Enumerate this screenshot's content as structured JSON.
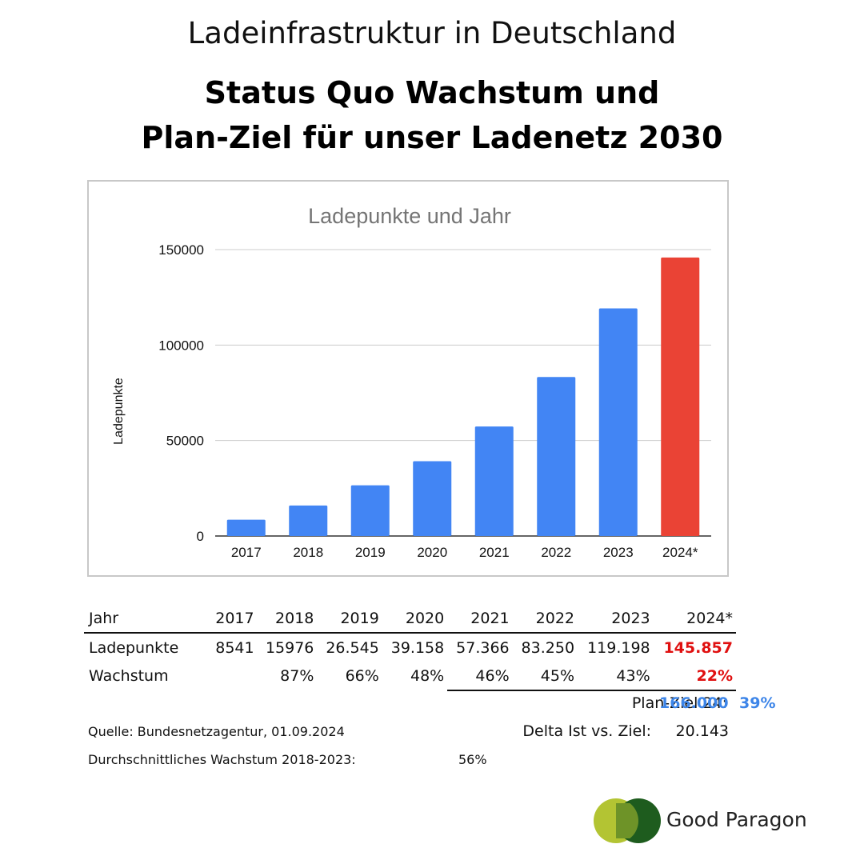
{
  "header": {
    "pretitle": "Ladeinfrastruktur in Deutschland",
    "title_line1": "Status Quo Wachstum und",
    "title_line2": "Plan-Ziel für unser Ladenetz 2030"
  },
  "chart_data": {
    "type": "bar",
    "title": "Ladepunkte und Jahr",
    "xlabel": "",
    "ylabel": "Ladepunkte",
    "categories": [
      "2017",
      "2018",
      "2019",
      "2020",
      "2021",
      "2022",
      "2023",
      "2024*"
    ],
    "values": [
      8541,
      15976,
      26545,
      39158,
      57366,
      83250,
      119198,
      145857
    ],
    "ylim": [
      0,
      150000
    ],
    "yticks": [
      0,
      50000,
      100000,
      150000
    ],
    "ytick_labels": [
      "0",
      "50000",
      "100000",
      "150000"
    ],
    "grid": true,
    "bar_colors": [
      "#4285f4",
      "#4285f4",
      "#4285f4",
      "#4285f4",
      "#4285f4",
      "#4285f4",
      "#4285f4",
      "#ea4335"
    ]
  },
  "table": {
    "header_label": "Jahr",
    "years": [
      "2017",
      "2018",
      "2019",
      "2020",
      "2021",
      "2022",
      "2023",
      "2024*"
    ],
    "ladepunkte_label": "Ladepunkte",
    "ladepunkte": [
      "8541",
      "15976",
      "26.545",
      "39.158",
      "57.366",
      "83.250",
      "119.198",
      "145.857"
    ],
    "wachstum_label": "Wachstum",
    "wachstum": [
      "",
      "87%",
      "66%",
      "48%",
      "46%",
      "45%",
      "43%",
      "22%"
    ]
  },
  "plan": {
    "label": "Plan-Ziel 24:",
    "value": "166.000",
    "percent": "39%"
  },
  "delta": {
    "label": "Delta Ist vs. Ziel:",
    "value": "20.143"
  },
  "source": "Quelle: Bundesnetzagentur, 01.09.2024",
  "average": {
    "label": "Durchschnittliches Wachstum 2018-2023:",
    "value": "56%"
  },
  "brand": {
    "name": "Good Paragon"
  },
  "colors": {
    "accent_blue": "#3d85e8",
    "highlight_red": "#e01010"
  }
}
